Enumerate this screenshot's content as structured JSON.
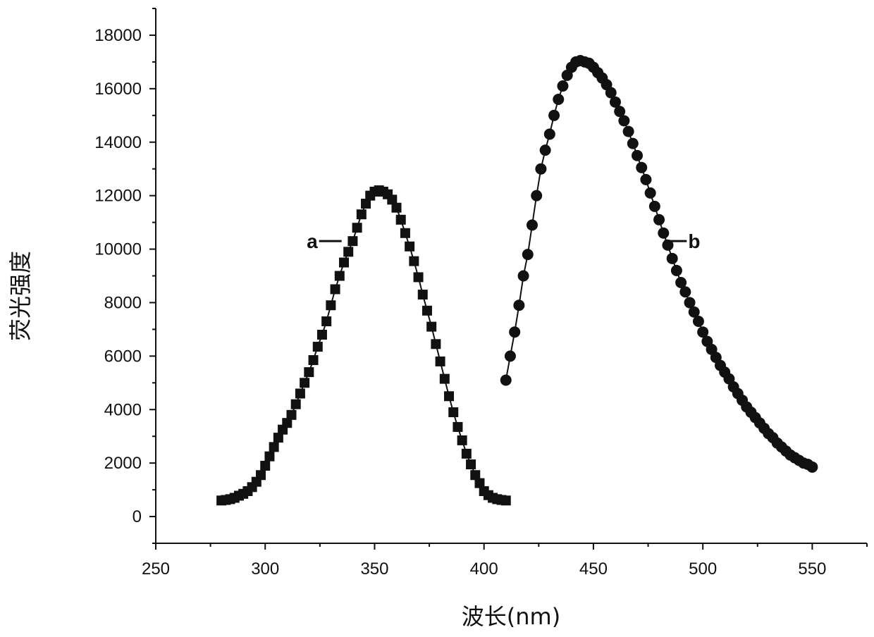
{
  "chart_data": {
    "type": "scatter",
    "xlabel": "波长(nm)",
    "ylabel": "荧光强度",
    "xlim": [
      250,
      575
    ],
    "ylim": [
      -1000,
      19000
    ],
    "x_ticks": [
      250,
      300,
      350,
      400,
      450,
      500,
      550
    ],
    "y_ticks": [
      0,
      2000,
      4000,
      6000,
      8000,
      10000,
      12000,
      14000,
      16000,
      18000
    ],
    "grid": false,
    "legend": "none",
    "series": [
      {
        "name": "a",
        "marker": "square",
        "color": "#111111",
        "x": [
          280,
          282,
          284,
          286,
          288,
          290,
          292,
          294,
          296,
          298,
          300,
          302,
          304,
          306,
          308,
          310,
          312,
          314,
          316,
          318,
          320,
          322,
          324,
          326,
          328,
          330,
          332,
          334,
          336,
          338,
          340,
          342,
          344,
          346,
          348,
          350,
          352,
          354,
          356,
          358,
          360,
          362,
          364,
          366,
          368,
          370,
          372,
          374,
          376,
          378,
          380,
          382,
          384,
          386,
          388,
          390,
          392,
          394,
          396,
          398,
          400,
          402,
          404,
          406,
          408,
          410
        ],
        "y": [
          600,
          620,
          650,
          700,
          780,
          850,
          950,
          1100,
          1300,
          1550,
          1900,
          2250,
          2600,
          2950,
          3250,
          3500,
          3800,
          4200,
          4600,
          5000,
          5400,
          5850,
          6350,
          6800,
          7300,
          7900,
          8500,
          9000,
          9500,
          9900,
          10300,
          10800,
          11300,
          11700,
          12000,
          12150,
          12200,
          12150,
          12050,
          11850,
          11550,
          11100,
          10600,
          10100,
          9550,
          8950,
          8300,
          7700,
          7100,
          6450,
          5800,
          5150,
          4500,
          3900,
          3350,
          2850,
          2350,
          1950,
          1550,
          1250,
          950,
          800,
          700,
          650,
          620,
          600
        ]
      },
      {
        "name": "b",
        "marker": "circle",
        "color": "#111111",
        "x": [
          410,
          412,
          414,
          416,
          418,
          420,
          422,
          424,
          426,
          428,
          430,
          432,
          434,
          436,
          438,
          440,
          442,
          444,
          446,
          448,
          450,
          452,
          454,
          456,
          458,
          460,
          462,
          464,
          466,
          468,
          470,
          472,
          474,
          476,
          478,
          480,
          482,
          484,
          486,
          488,
          490,
          492,
          494,
          496,
          498,
          500,
          502,
          504,
          506,
          508,
          510,
          512,
          514,
          516,
          518,
          520,
          522,
          524,
          526,
          528,
          530,
          532,
          534,
          536,
          538,
          540,
          542,
          544,
          546,
          548,
          550
        ],
        "y": [
          5100,
          6000,
          6900,
          7900,
          9000,
          9800,
          10900,
          12000,
          13000,
          13700,
          14300,
          15000,
          15600,
          16100,
          16500,
          16800,
          17000,
          17050,
          17000,
          16950,
          16800,
          16600,
          16400,
          16150,
          15850,
          15500,
          15150,
          14800,
          14400,
          13950,
          13500,
          13050,
          12600,
          12100,
          11600,
          11100,
          10600,
          10150,
          9650,
          9200,
          8750,
          8400,
          8000,
          7650,
          7300,
          6900,
          6550,
          6250,
          5950,
          5650,
          5400,
          5150,
          4850,
          4600,
          4350,
          4100,
          3900,
          3700,
          3500,
          3300,
          3100,
          2950,
          2750,
          2600,
          2450,
          2300,
          2200,
          2100,
          2000,
          1950,
          1850
        ]
      }
    ],
    "annotations": [
      {
        "text": "a",
        "x": 333,
        "y": 10300,
        "points_to": "left"
      },
      {
        "text": "b",
        "x": 492,
        "y": 10300,
        "points_to": "right"
      }
    ]
  }
}
